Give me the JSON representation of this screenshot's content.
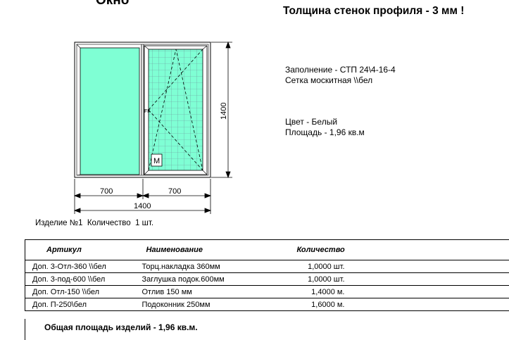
{
  "document": {
    "title": "Окно",
    "profile_thickness": "Толщина стенок профиля - 3 мм !"
  },
  "info": {
    "filling": "Заполнение - СТП 24\\4-16-4",
    "mesh": "Сетка москитная \\\\бел",
    "color": "Цвет - Белый",
    "area": "Площадь - 1,96 кв.м"
  },
  "drawing": {
    "height_label": "1400",
    "width_left": "700",
    "width_right": "700",
    "width_total": "1400",
    "handle_mark": "M",
    "hinge_mark": "FK",
    "colors": {
      "glass": "#7fffd4",
      "frame": "#ffffff",
      "line": "#000000"
    }
  },
  "product": {
    "line": "Изделие №1  Количество  1 шт."
  },
  "table": {
    "headers": {
      "article": "Артикул",
      "name": "Наименование",
      "quantity": "Количество"
    },
    "rows": [
      {
        "article": "Доп.  3-Отл-360 \\\\бел",
        "name": "Торц.накладка 360мм",
        "quantity": "1,0000 шт."
      },
      {
        "article": "Доп.  3-под-600 \\\\бел",
        "name": "Заглушка подок.600мм",
        "quantity": "1,0000 шт."
      },
      {
        "article": "Доп.  Отл-150 \\\\бел",
        "name": "Отлив 150 мм",
        "quantity": "1,4000 м."
      },
      {
        "article": "Доп.  П-250\\бел",
        "name": "Подоконник 250мм",
        "quantity": "1,6000 м."
      }
    ],
    "total": "Общая площадь изделий - 1,96 кв.м."
  }
}
